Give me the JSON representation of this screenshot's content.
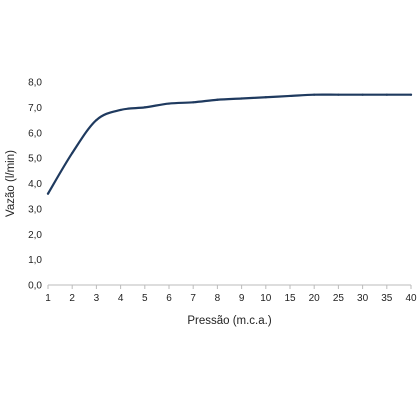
{
  "chart_data": {
    "type": "line",
    "title": "",
    "xlabel": "Pressão (m.c.a.)",
    "ylabel": "Vazão (l/min)",
    "categories": [
      "1",
      "2",
      "3",
      "4",
      "5",
      "6",
      "7",
      "8",
      "9",
      "10",
      "15",
      "20",
      "25",
      "30",
      "35",
      "40"
    ],
    "yticks": [
      "0,0",
      "1,0",
      "2,0",
      "3,0",
      "4,0",
      "5,0",
      "6,0",
      "7,0",
      "8,0"
    ],
    "ylim": [
      0,
      8
    ],
    "grid": false,
    "series": [
      {
        "values": [
          3.6,
          5.2,
          6.5,
          6.9,
          7.0,
          7.15,
          7.2,
          7.3,
          7.35,
          7.4,
          7.45,
          7.5,
          7.5,
          7.5,
          7.5,
          7.5
        ]
      }
    ],
    "colors": {
      "line": "#1f3a5f",
      "axis": "#bbbbbb"
    }
  }
}
